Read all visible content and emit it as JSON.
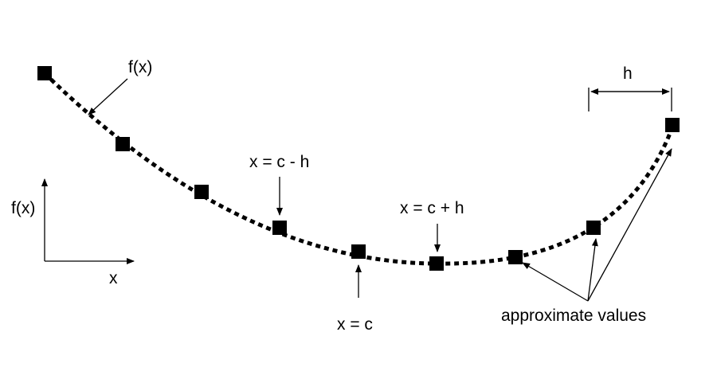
{
  "labels": {
    "fx_curve": "f(x)",
    "fx_axis": "f(x)",
    "x_axis": "x",
    "x_minus": "x = c - h",
    "x_c": "x = c",
    "x_plus": "x = c + h",
    "h": "h",
    "approx": "approximate values"
  },
  "colors": {
    "ink": "#000000",
    "background": "#ffffff"
  },
  "points": [
    {
      "name": "point-1"
    },
    {
      "name": "point-2"
    },
    {
      "name": "point-3"
    },
    {
      "name": "point-c-minus-h"
    },
    {
      "name": "point-c"
    },
    {
      "name": "point-c-plus-h"
    },
    {
      "name": "point-7"
    },
    {
      "name": "point-8"
    },
    {
      "name": "point-9"
    }
  ]
}
